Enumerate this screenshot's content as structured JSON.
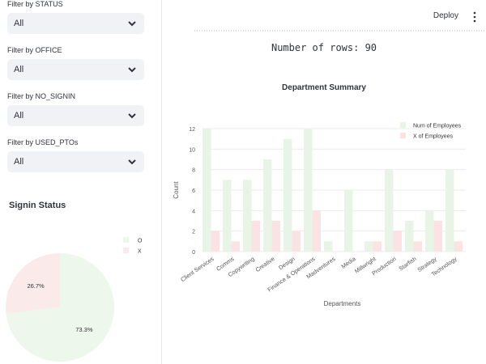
{
  "sidebar": {
    "filters": [
      {
        "label": "Filter by STATUS",
        "value": "All"
      },
      {
        "label": "Filter by OFFICE",
        "value": "All"
      },
      {
        "label": "Filter by NO_SIGNIN",
        "value": "All"
      },
      {
        "label": "Filter by USED_PTOs",
        "value": "All"
      }
    ],
    "signin_title": "Signin Status"
  },
  "header": {
    "deploy_label": "Deploy",
    "menu_icon": "kebab-menu-icon"
  },
  "main": {
    "row_count_text": "Number of rows: 90"
  },
  "colors": {
    "bar_employees": "#e8f5e6",
    "bar_x": "#fbe3e3",
    "pie_o": "#eef7ec",
    "pie_x": "#fbeaea"
  },
  "chart_data": [
    {
      "type": "bar",
      "title": "Department Summary",
      "xlabel": "Departments",
      "ylabel": "Count",
      "ylim": [
        0,
        12
      ],
      "yticks": [
        0,
        2,
        4,
        6,
        8,
        10,
        12
      ],
      "grid": true,
      "legend_position": "top-right",
      "categories": [
        "Client Services",
        "Comms",
        "Copywriting",
        "Creative",
        "Design",
        "Finance & Operations",
        "Madventures",
        "Media",
        "Millwright",
        "Production",
        "Starfish",
        "Strategy",
        "Technology"
      ],
      "series": [
        {
          "name": "Num of Employees",
          "values": [
            12,
            7,
            7,
            9,
            11,
            12,
            1,
            6,
            1,
            8,
            3,
            4,
            8
          ]
        },
        {
          "name": "X of Employees",
          "values": [
            2,
            1,
            3,
            3,
            2,
            4,
            0,
            0,
            1,
            2,
            1,
            3,
            1
          ]
        }
      ]
    },
    {
      "type": "pie",
      "title": "",
      "legend_position": "top-right",
      "slices": [
        {
          "label": "O",
          "value": 73.3,
          "display": "73.3%"
        },
        {
          "label": "X",
          "value": 26.7,
          "display": "26.7%"
        }
      ]
    }
  ]
}
